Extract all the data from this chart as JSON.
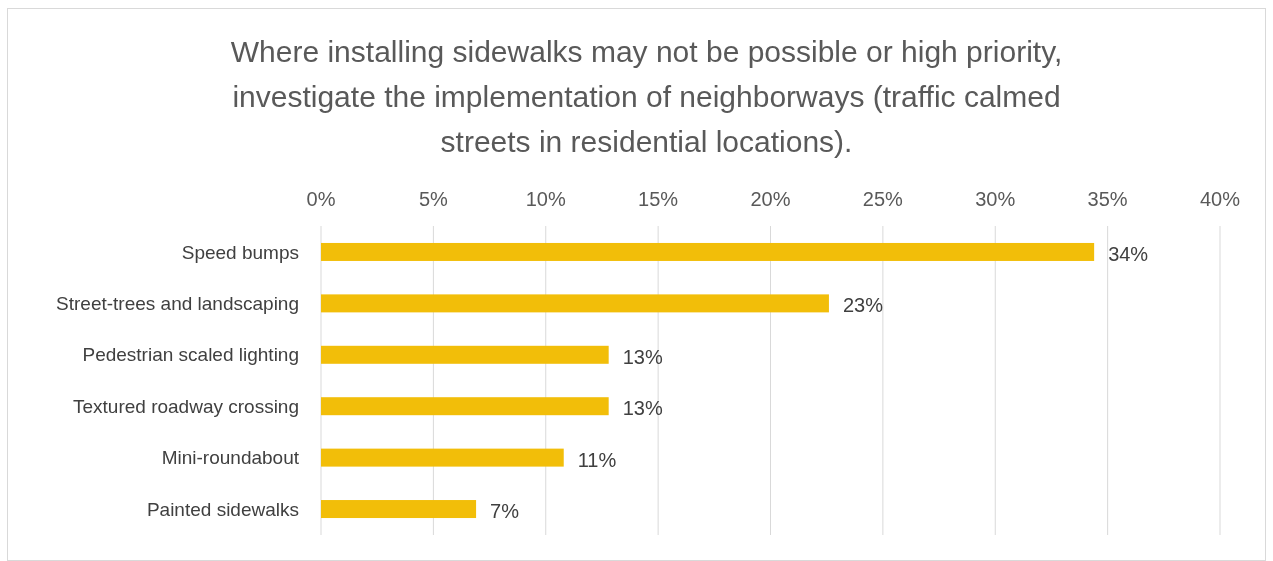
{
  "chart_data": {
    "type": "bar",
    "orientation": "horizontal",
    "title": "Where installing sidewalks may not be possible or high priority,\ninvestigate the implementation of neighborways (traffic calmed\nstreets in residential locations).",
    "categories": [
      "Speed bumps",
      "Street-trees and landscaping",
      "Pedestrian scaled lighting",
      "Textured roadway crossing",
      "Mini-roundabout",
      "Painted sidewalks"
    ],
    "values": [
      34.4,
      22.6,
      12.8,
      12.8,
      10.8,
      6.9
    ],
    "value_labels": [
      "34%",
      "23%",
      "13%",
      "13%",
      "11%",
      "7%"
    ],
    "color": "#f2be09",
    "xlim": [
      0,
      40
    ],
    "xticks": [
      {
        "value": 0,
        "label": "0%"
      },
      {
        "value": 5,
        "label": "5%"
      },
      {
        "value": 10,
        "label": "10%"
      },
      {
        "value": 15,
        "label": "15%"
      },
      {
        "value": 20,
        "label": "20%"
      },
      {
        "value": 25,
        "label": "25%"
      },
      {
        "value": 30,
        "label": "30%"
      },
      {
        "value": 35,
        "label": "35%"
      },
      {
        "value": 40,
        "label": "40%"
      }
    ],
    "grid": "x"
  }
}
